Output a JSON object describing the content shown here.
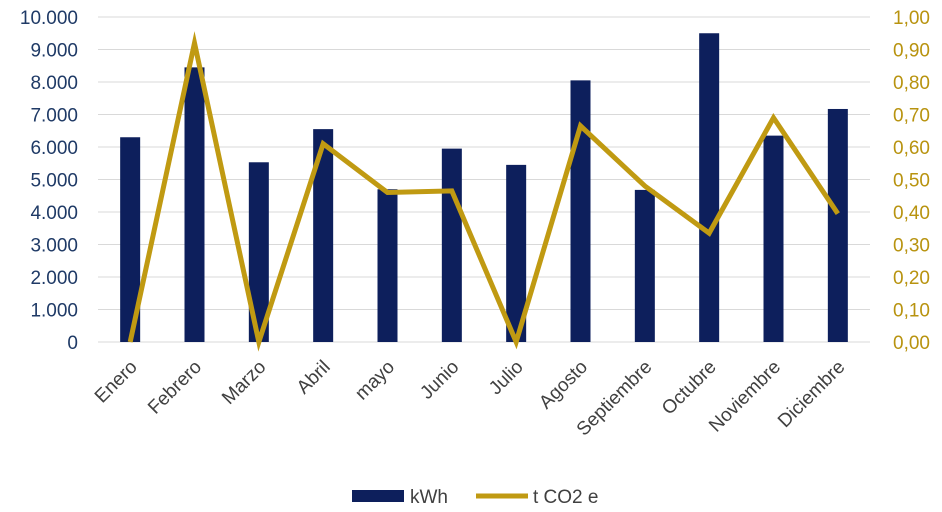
{
  "chart_data": {
    "type": "bar",
    "categories": [
      "Enero",
      "Febrero",
      "Marzo",
      "Abril",
      "mayo",
      "Junio",
      "Julio",
      "Agosto",
      "Septiembre",
      "Octubre",
      "Noviembre",
      "Diciembre"
    ],
    "series": [
      {
        "name": "kWh",
        "type": "bar",
        "axis": "left",
        "color": "#0d1f5c",
        "values": [
          6300,
          8450,
          5530,
          6550,
          4700,
          5950,
          5450,
          8050,
          4680,
          9500,
          6350,
          7170
        ]
      },
      {
        "name": "t CO2 e",
        "type": "line",
        "axis": "right",
        "color": "#c09a12",
        "values": [
          0.0,
          0.92,
          0.0,
          0.61,
          0.46,
          0.465,
          0.0,
          0.665,
          0.48,
          0.335,
          0.69,
          0.395
        ]
      }
    ],
    "y_left": {
      "ylim": [
        0,
        10000
      ],
      "tick_labels": [
        "0",
        "1.000",
        "2.000",
        "3.000",
        "4.000",
        "5.000",
        "6.000",
        "7.000",
        "8.000",
        "9.000",
        "10.000"
      ]
    },
    "y_right": {
      "ylim": [
        0,
        1.0
      ],
      "tick_labels": [
        "0,00",
        "0,10",
        "0,20",
        "0,30",
        "0,40",
        "0,50",
        "0,60",
        "0,70",
        "0,80",
        "0,90",
        "1,00"
      ]
    },
    "grid": true,
    "legend": {
      "position": "bottom",
      "entries": [
        "kWh",
        "t CO2 e"
      ]
    }
  }
}
